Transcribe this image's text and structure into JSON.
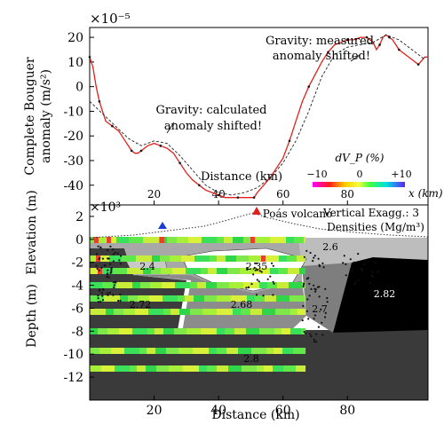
{
  "chart_data": [
    {
      "type": "line",
      "ylabel_line1": "Complete Bouguer",
      "ylabel_line2": "anomaly (m/s²)",
      "y_exponent": "×10⁻⁵",
      "xlabel_inline": "Distance (km)",
      "xlim": [
        0,
        105
      ],
      "ylim": [
        -48,
        24
      ],
      "yticks": [
        20,
        10,
        0,
        -10,
        -20,
        -30,
        -40
      ],
      "xticks": [
        20,
        40,
        60,
        80
      ],
      "annotations": [
        {
          "text": "Gravity: measured",
          "text2": "anomaly shifted!"
        },
        {
          "text": "Gravity: calculated",
          "text2": "anomaly shifted!"
        }
      ],
      "series": [
        {
          "color": "#e0201c",
          "x": [
            0,
            1,
            2,
            3,
            4,
            5,
            7,
            9,
            11,
            13,
            14,
            15,
            16,
            18,
            20,
            22,
            24,
            26,
            28,
            30,
            32,
            34,
            36,
            38,
            40,
            42,
            44,
            46,
            48,
            50,
            51,
            52,
            54,
            56,
            58,
            60,
            62,
            64,
            66,
            68,
            70,
            72,
            74,
            76,
            78,
            80,
            82,
            84,
            86,
            88,
            89,
            90,
            91,
            92,
            93,
            94,
            95,
            96,
            98,
            100,
            102,
            104,
            105
          ],
          "y": [
            12,
            8,
            0,
            -6,
            -10,
            -14,
            -16,
            -18,
            -22,
            -26,
            -27,
            -27,
            -26,
            -24,
            -23,
            -24,
            -25,
            -27,
            -31,
            -35,
            -38,
            -40,
            -42,
            -43,
            -44,
            -45,
            -45,
            -45,
            -45,
            -45,
            -45,
            -43,
            -40,
            -37,
            -33,
            -29,
            -22,
            -14,
            -6,
            0,
            5,
            10,
            14,
            17,
            18,
            19,
            19,
            20,
            20,
            18,
            15,
            17,
            20,
            21,
            20,
            19,
            17,
            15,
            13,
            11,
            9,
            12,
            12
          ]
        },
        {
          "color": "#222222",
          "x": [
            0,
            4,
            8,
            12,
            16,
            20,
            24,
            28,
            32,
            36,
            40,
            44,
            48,
            52,
            56,
            60,
            64,
            68,
            72,
            76,
            80,
            84,
            88,
            92,
            96,
            100,
            104
          ],
          "y": [
            -6,
            -11,
            -16,
            -21,
            -24,
            -22,
            -23,
            -28,
            -34,
            -40,
            -43,
            -44,
            -43,
            -41,
            -37,
            -31,
            -22,
            -10,
            4,
            13,
            16,
            17,
            18,
            21,
            19,
            15,
            11
          ]
        }
      ],
      "colorbar": {
        "label": "dV_P (%)",
        "ticks": [
          "−10",
          "0",
          "+10"
        ],
        "unit": "x (km)"
      }
    },
    {
      "type": "heatmap",
      "xlabel": "Distance (km)",
      "ylabel_top": "Elevation (m)",
      "ylabel_bottom": "Depth (m)",
      "y_exponent": "×10³",
      "xlim": [
        0,
        105
      ],
      "ylim": [
        -14,
        3
      ],
      "xticks": [
        20,
        40,
        60,
        80
      ],
      "yticks": [
        2,
        0,
        -2,
        -4,
        -6,
        -8,
        -10,
        -12
      ],
      "volcano_label": "Poás volcano",
      "info_line1": "Vertical Exagg.: 3",
      "info_line2": "Densities (Mg/m³)",
      "density_bodies": [
        "2.4",
        "2.35",
        "2.6",
        "2.72",
        "2.68",
        "2.7",
        "2.82",
        "2.8"
      ]
    }
  ]
}
